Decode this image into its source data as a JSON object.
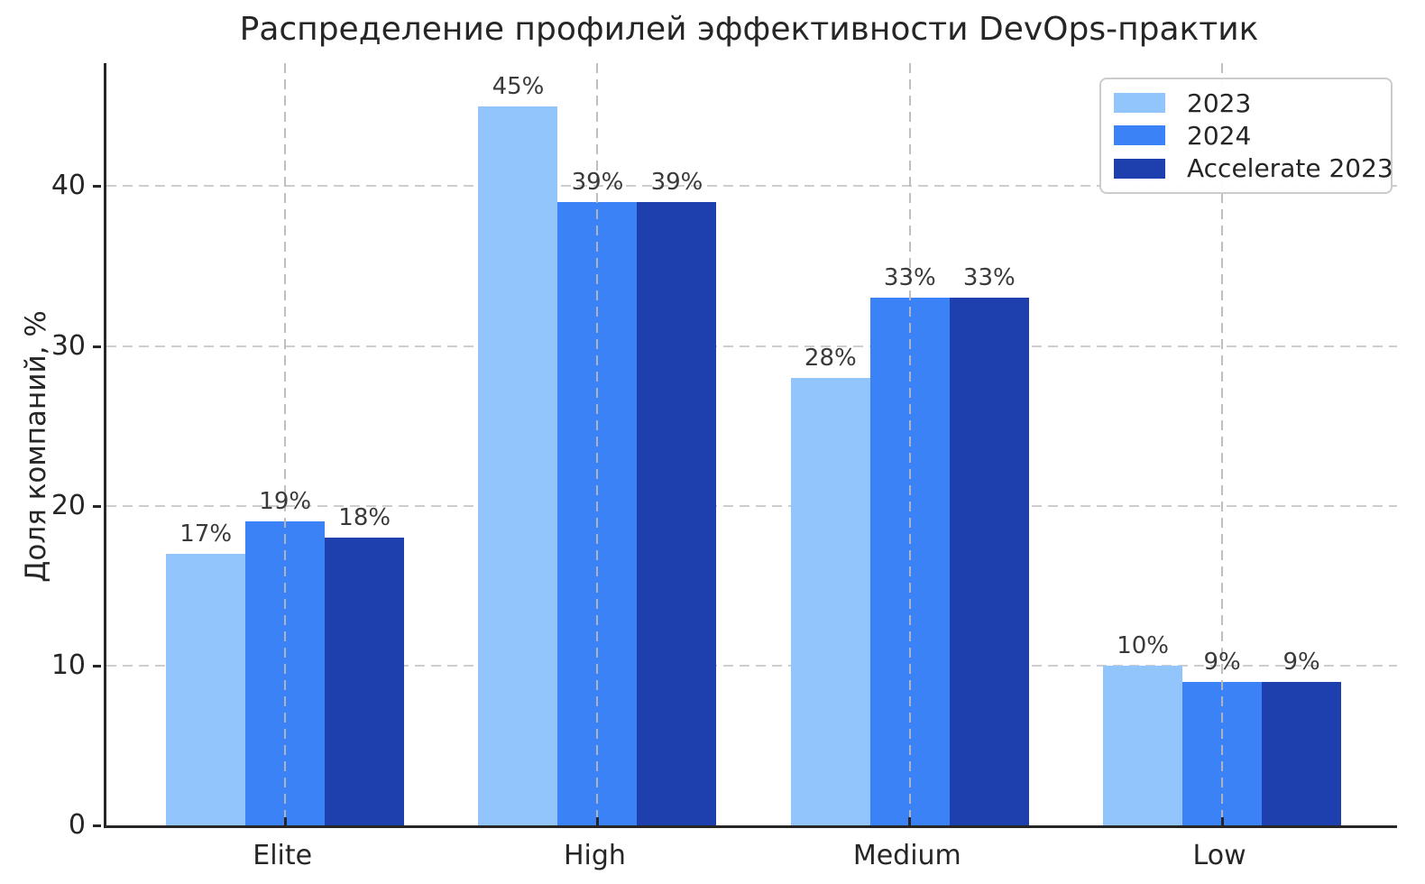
{
  "chart_data": {
    "type": "bar",
    "title": "Распределение профилей эффективности DevOps-практик",
    "xlabel": "",
    "ylabel": "Доля компаний, %",
    "categories": [
      "Elite",
      "High",
      "Medium",
      "Low"
    ],
    "series": [
      {
        "name": "2023",
        "color": "#93c5fd",
        "values": [
          17,
          45,
          28,
          10
        ]
      },
      {
        "name": "2024",
        "color": "#3b82f6",
        "values": [
          19,
          39,
          33,
          9
        ]
      },
      {
        "name": "Accelerate 2023",
        "color": "#1e40af",
        "values": [
          18,
          39,
          33,
          9
        ]
      }
    ],
    "bar_label_suffix": "%",
    "ylim": [
      0,
      47.7
    ],
    "yticks": [
      0,
      10,
      20,
      30,
      40
    ],
    "grid": {
      "horizontal": true,
      "vertical": true,
      "style": "dashed"
    },
    "legend": {
      "position": "upper right",
      "entries": [
        "2023",
        "2024",
        "Accelerate 2023"
      ]
    },
    "colors": {
      "spine": "#262626",
      "grid": "#cdcdcd",
      "tick_text": "#262626",
      "bar_label_text": "#3a3a3a"
    }
  }
}
